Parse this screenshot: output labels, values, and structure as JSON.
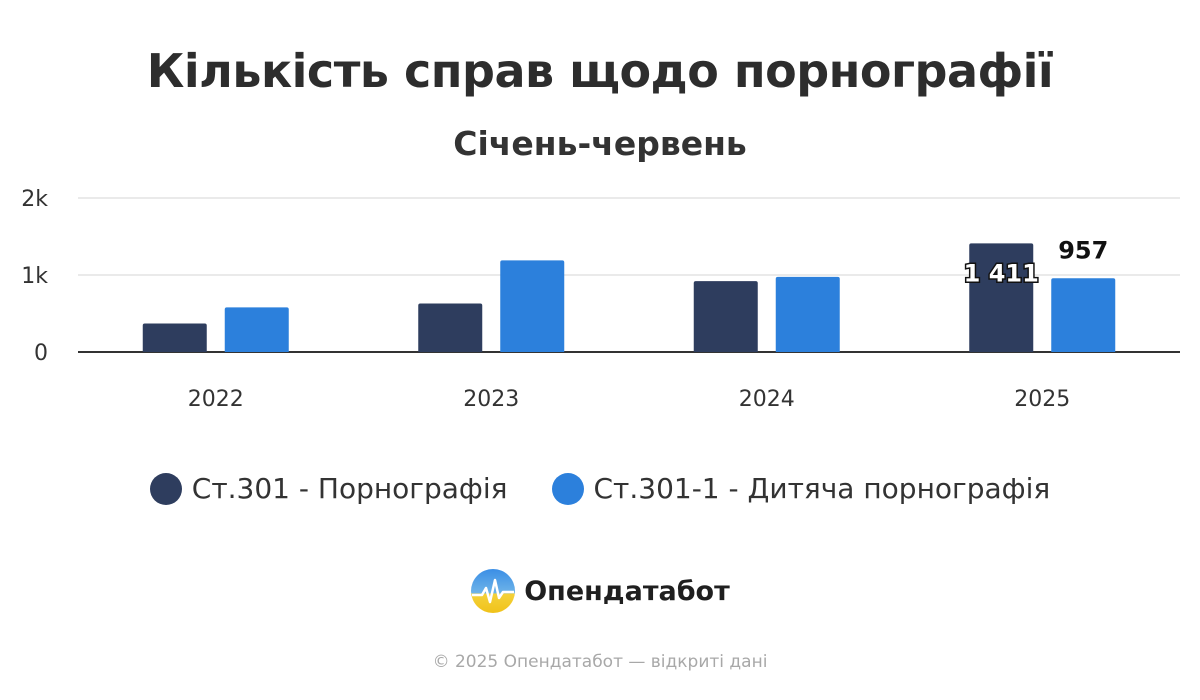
{
  "chart_data": {
    "type": "bar",
    "title": "Кількість справ щодо порнографії",
    "subtitle": "Січень-червень",
    "categories": [
      "2022",
      "2023",
      "2024",
      "2025"
    ],
    "series": [
      {
        "name": "Ст.301 - Порнографія",
        "color": "#2e3d5e",
        "values": [
          370,
          630,
          920,
          1411
        ]
      },
      {
        "name": "Ст.301-1 - Дитяча порнографія",
        "color": "#2c80dc",
        "values": [
          580,
          1190,
          975,
          957
        ]
      }
    ],
    "data_labels": [
      {
        "series": 0,
        "category": 3,
        "text": "1 411"
      },
      {
        "series": 1,
        "category": 3,
        "text": "957"
      }
    ],
    "y_ticks": [
      {
        "value": 0,
        "label": "0"
      },
      {
        "value": 1000,
        "label": "1k"
      },
      {
        "value": 2000,
        "label": "2k"
      }
    ],
    "ylim": [
      0,
      2000
    ],
    "grid": true,
    "legend_position": "bottom"
  },
  "brand": {
    "name": "Опендатабот"
  },
  "footer": {
    "text": "© 2025 Опендатабот — відкриті дані"
  }
}
